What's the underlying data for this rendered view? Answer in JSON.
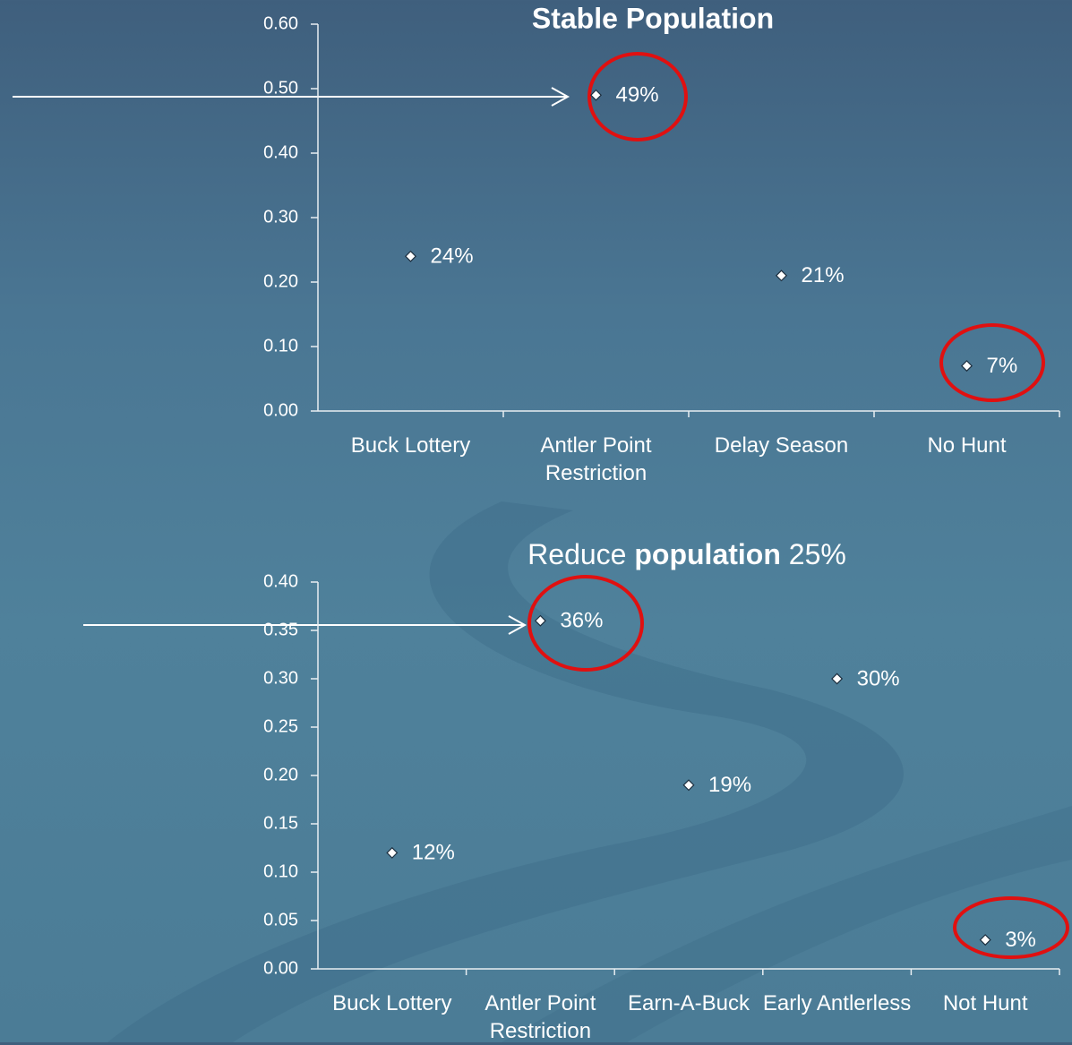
{
  "chart_data": [
    {
      "type": "scatter",
      "title": "Stable Population",
      "categories": [
        "Buck Lottery",
        "Antler Point Restriction",
        "Delay Season",
        "No Hunt"
      ],
      "values": [
        0.24,
        0.49,
        0.21,
        0.07
      ],
      "value_labels": [
        "24%",
        "49%",
        "21%",
        "7%"
      ],
      "color": "#ffffff",
      "ylim": [
        0,
        0.6
      ],
      "yticks": [
        {
          "value": 0,
          "label": "0.00"
        },
        {
          "value": 0.1,
          "label": "0.10"
        },
        {
          "value": 0.2,
          "label": "0.20"
        },
        {
          "value": 0.3,
          "label": "0.30"
        },
        {
          "value": 0.4,
          "label": "0.40"
        },
        {
          "value": 0.5,
          "label": "0.50"
        },
        {
          "value": 0.6,
          "label": "0.60"
        }
      ]
    },
    {
      "type": "scatter",
      "title": "Reduce population 25%",
      "title_bold": "population",
      "categories": [
        "Buck Lottery",
        "Antler Point Restriction",
        "Earn-A-Buck",
        "Early Antlerless",
        "Not Hunt"
      ],
      "values": [
        0.12,
        0.36,
        0.19,
        0.3,
        0.03
      ],
      "value_labels": [
        "12%",
        "36%",
        "19%",
        "30%",
        "3%"
      ],
      "color": "#ffffff",
      "ylim": [
        0,
        0.4
      ],
      "yticks": [
        {
          "value": 0,
          "label": "0.00"
        },
        {
          "value": 0.05,
          "label": "0.05"
        },
        {
          "value": 0.1,
          "label": "0.10"
        },
        {
          "value": 0.15,
          "label": "0.15"
        },
        {
          "value": 0.2,
          "label": "0.20"
        },
        {
          "value": 0.25,
          "label": "0.25"
        },
        {
          "value": 0.3,
          "label": "0.30"
        },
        {
          "value": 0.35,
          "label": "0.35"
        },
        {
          "value": 0.4,
          "label": "0.40"
        }
      ]
    }
  ]
}
